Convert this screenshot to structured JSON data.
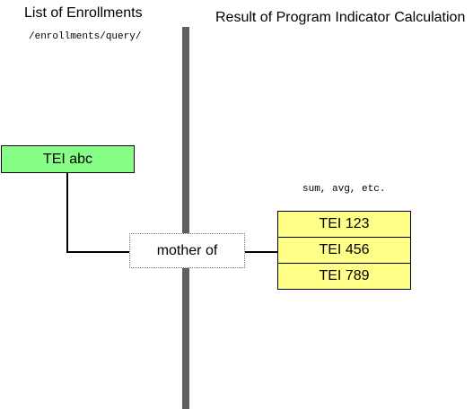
{
  "headings": {
    "left": "List of Enrollments",
    "right": "Result of Program Indicator Calculation"
  },
  "notes": {
    "endpoint": "/enrollments/query/",
    "aggregation": "sum, avg, etc."
  },
  "nodes": {
    "source": "TEI abc",
    "relation": "mother of",
    "results": [
      "TEI 123",
      "TEI 456",
      "TEI 789"
    ]
  },
  "colors": {
    "source_fill": "#87ff87",
    "result_fill": "#ffff88",
    "divider": "#5f5f5f",
    "outline": "#000000",
    "relation_outline": "#7a7a7a"
  }
}
